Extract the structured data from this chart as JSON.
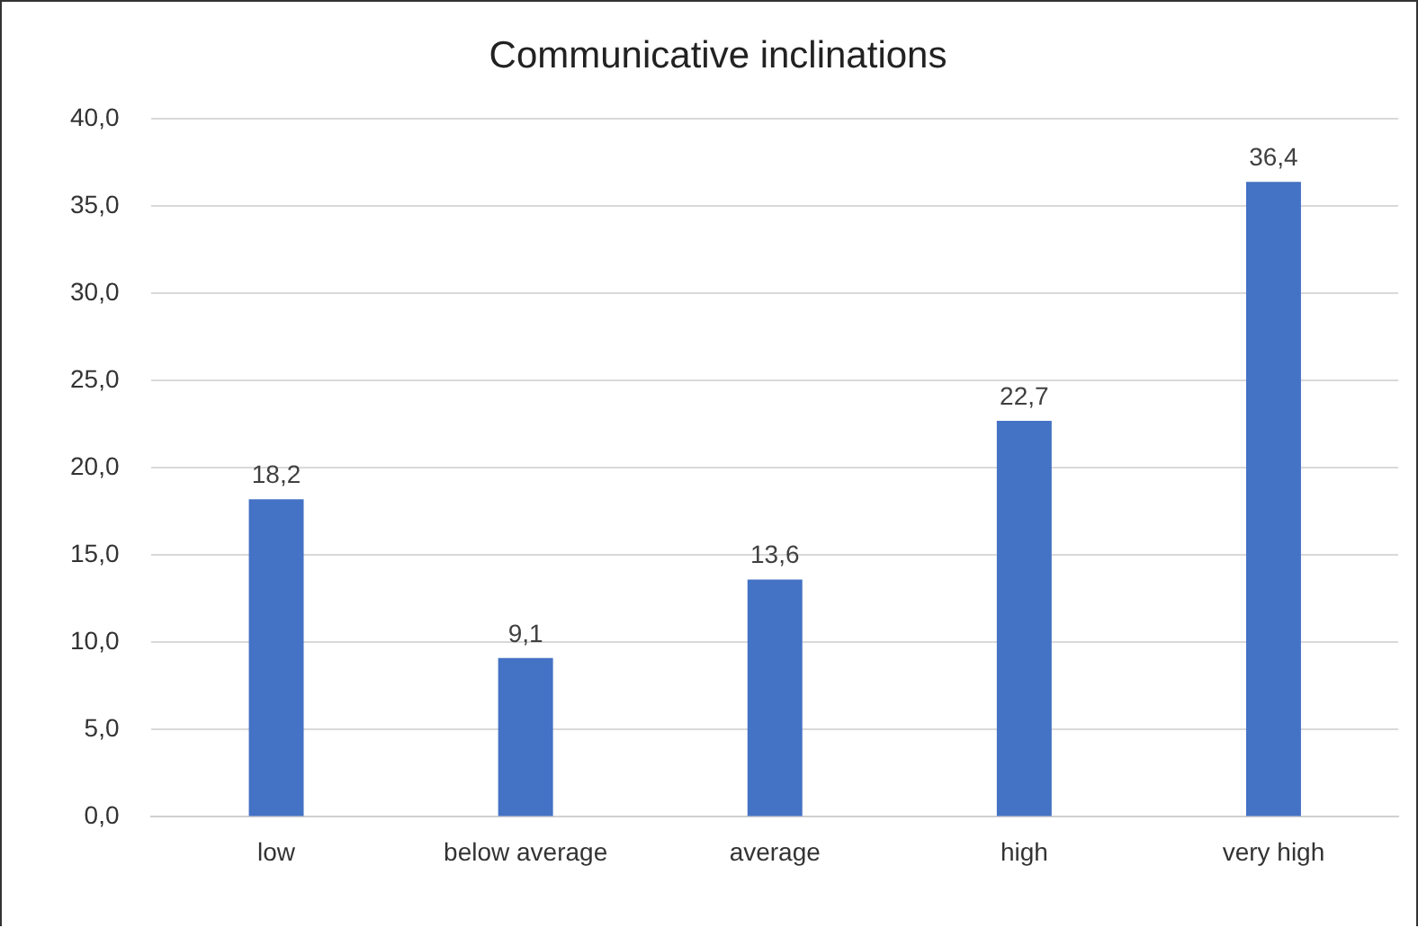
{
  "chart_data": {
    "type": "bar",
    "title": "Communicative inclinations",
    "categories": [
      "low",
      "below average",
      "average",
      "high",
      "very high"
    ],
    "values": [
      18.2,
      9.1,
      13.6,
      22.7,
      36.4
    ],
    "value_labels": [
      "18,2",
      "9,1",
      "13,6",
      "22,7",
      "36,4"
    ],
    "color": "#4472c4",
    "ylim": [
      0,
      40
    ],
    "yticks": [
      {
        "value": 0,
        "label": "0,0"
      },
      {
        "value": 5,
        "label": "5,0"
      },
      {
        "value": 10,
        "label": "10,0"
      },
      {
        "value": 15,
        "label": "15,0"
      },
      {
        "value": 20,
        "label": "20,0"
      },
      {
        "value": 25,
        "label": "25,0"
      },
      {
        "value": 30,
        "label": "30,0"
      },
      {
        "value": 35,
        "label": "35,0"
      },
      {
        "value": 40,
        "label": "40,0"
      }
    ],
    "grid": "y",
    "legend": false
  }
}
